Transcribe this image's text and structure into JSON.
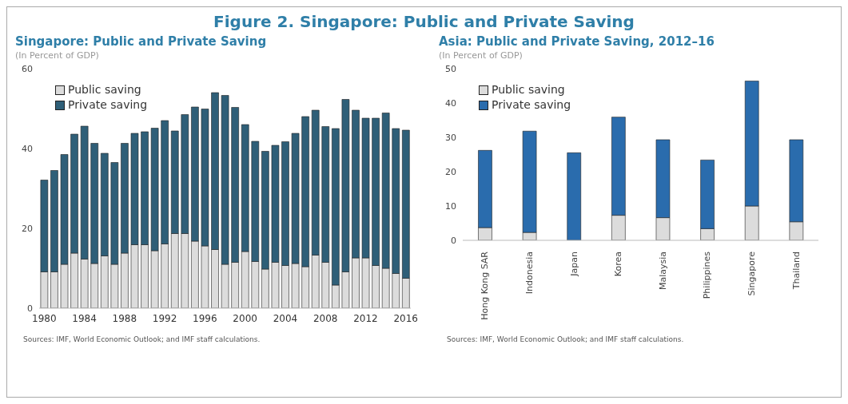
{
  "chart_data": [
    {
      "type": "bar",
      "title": "Singapore: Public and Private Saving",
      "ylabel": "(In Percent of GDP)",
      "annotations": [
        "Figure 2. Singapore: Public and Private Saving",
        "Sources: IMF, World Economic Outlook; and IMF staff calculations."
      ],
      "categories": [
        "1980",
        null,
        null,
        null,
        "1984",
        null,
        null,
        null,
        "1988",
        null,
        null,
        null,
        "1992",
        null,
        null,
        null,
        "1996",
        null,
        null,
        null,
        "2000",
        null,
        null,
        null,
        "2004",
        null,
        null,
        null,
        "2008",
        null,
        null,
        null,
        "2012",
        null,
        null,
        null,
        "2016"
      ],
      "series": [
        {
          "name": "Public saving",
          "color": "#dcdcdc",
          "values": [
            9.1,
            9.1,
            11,
            13.8,
            12.3,
            11.2,
            13.1,
            11,
            13.8,
            15.9,
            15.9,
            14.4,
            16.1,
            18.7,
            18.7,
            16.8,
            15.6,
            14.7,
            11,
            11.5,
            14.2,
            11.7,
            9.8,
            11.5,
            10.7,
            11.2,
            10.4,
            13.3,
            11.5,
            5.8,
            9.1,
            12.6,
            12.6,
            10.7,
            10,
            8.7,
            7.5
          ]
        },
        {
          "name": "Private saving",
          "color": "#2f5f78",
          "values": [
            23,
            25.4,
            27.5,
            29.8,
            33.3,
            30.1,
            25.7,
            25.5,
            27.5,
            27.9,
            28.3,
            30.7,
            30.9,
            25.7,
            29.8,
            33.6,
            34.3,
            39.3,
            42.3,
            38.8,
            31.8,
            30.1,
            29.5,
            29.3,
            31,
            32.6,
            37.6,
            36.3,
            34,
            39.2,
            43.2,
            37,
            35,
            36.9,
            38.9,
            36.3,
            37.1
          ]
        }
      ],
      "stacked": true,
      "ylim": [
        0,
        60
      ],
      "yticks": [
        0,
        20,
        40,
        60
      ],
      "legend": "top left"
    },
    {
      "type": "bar",
      "title": "Asia: Public and Private Saving, 2012–16",
      "ylabel": "(In Percent of GDP)",
      "annotations": [
        "Sources: IMF, World Economic Outlook; and IMF staff calculations."
      ],
      "categories": [
        "Hong Kong SAR",
        "Indonesia",
        "Japan",
        "Korea",
        "Malaysia",
        "Philippines",
        "Singapore",
        "Thailand"
      ],
      "series": [
        {
          "name": "Public saving",
          "color": "#dcdcdc",
          "values": [
            3.7,
            2.3,
            null,
            7.3,
            6.6,
            3.4,
            10,
            5.4
          ]
        },
        {
          "name": "Private saving",
          "color": "#2a6cad",
          "values": [
            22.5,
            29.5,
            25.5,
            28.6,
            22.7,
            20,
            36.4,
            23.9
          ]
        }
      ],
      "stacked": true,
      "ylim": [
        0,
        50
      ],
      "yticks": [
        0,
        10,
        20,
        30,
        40,
        50
      ],
      "legend": "top left"
    }
  ]
}
